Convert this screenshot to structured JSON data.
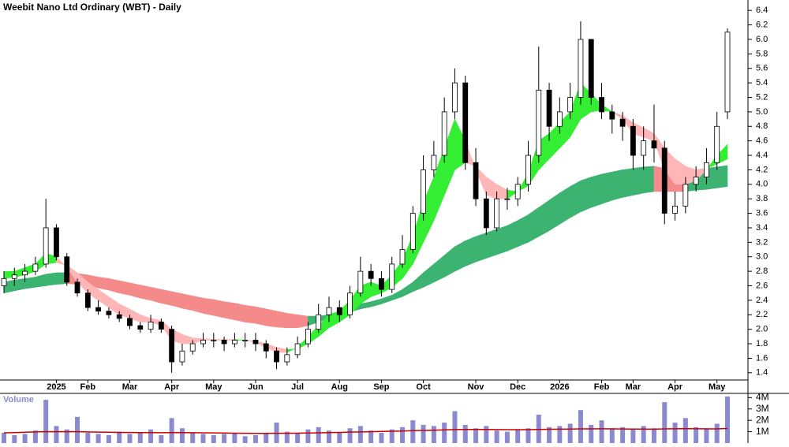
{
  "chart_data": {
    "type": "candlestick",
    "title": "Weebit Nano Ltd Ordinary (WBT) - Daily",
    "categories": [
      null,
      null,
      null,
      null,
      null,
      "2025",
      null,
      null,
      "Feb",
      null,
      null,
      null,
      "Mar",
      null,
      null,
      null,
      "Apr",
      null,
      null,
      null,
      "May",
      null,
      null,
      null,
      "Jun",
      null,
      null,
      null,
      "Jul",
      null,
      null,
      null,
      "Aug",
      null,
      null,
      null,
      "Sep",
      null,
      null,
      null,
      "Oct",
      null,
      null,
      null,
      null,
      "Nov",
      null,
      null,
      null,
      "Dec",
      null,
      null,
      null,
      "2026",
      null,
      null,
      null,
      "Feb",
      null,
      null,
      "Mar",
      null,
      null,
      null,
      "Apr",
      null,
      null,
      null,
      "May",
      null
    ],
    "open": [
      2.6,
      2.7,
      2.75,
      2.8,
      2.9,
      3.4,
      3.0,
      2.65,
      2.5,
      2.3,
      2.25,
      2.2,
      2.15,
      2.05,
      2.0,
      2.1,
      2.0,
      1.55,
      1.7,
      1.8,
      1.85,
      1.85,
      1.8,
      1.85,
      1.85,
      1.8,
      1.7,
      1.55,
      1.65,
      1.8,
      2.0,
      2.2,
      2.3,
      2.2,
      2.5,
      2.8,
      2.7,
      2.55,
      2.9,
      3.1,
      3.6,
      4.2,
      4.4,
      5.0,
      5.4,
      4.3,
      3.8,
      3.4,
      3.8,
      3.8,
      4.0,
      4.4,
      5.3,
      4.8,
      5.0,
      5.2,
      6.0,
      5.2,
      5.0,
      4.9,
      4.8,
      4.4,
      4.6,
      4.5,
      3.6,
      3.7,
      4.0,
      4.1,
      4.3,
      5.0
    ],
    "high": [
      2.8,
      2.85,
      2.9,
      3.0,
      3.8,
      3.45,
      3.05,
      2.7,
      2.55,
      2.4,
      2.3,
      2.25,
      2.2,
      2.1,
      2.2,
      2.15,
      2.05,
      1.8,
      1.85,
      1.95,
      1.95,
      1.9,
      1.95,
      1.95,
      1.95,
      1.85,
      1.75,
      1.75,
      1.9,
      2.1,
      2.35,
      2.45,
      2.4,
      2.6,
      3.0,
      2.9,
      2.8,
      3.0,
      3.3,
      3.7,
      4.4,
      4.6,
      5.2,
      5.6,
      5.5,
      4.5,
      3.9,
      3.9,
      3.95,
      4.1,
      4.6,
      5.9,
      5.4,
      5.2,
      5.4,
      6.25,
      6.0,
      5.4,
      5.1,
      5.0,
      4.9,
      4.8,
      5.1,
      4.6,
      3.9,
      4.1,
      4.25,
      4.5,
      5.0,
      6.15
    ],
    "low": [
      2.5,
      2.6,
      2.65,
      2.75,
      2.85,
      2.95,
      2.6,
      2.45,
      2.25,
      2.2,
      2.15,
      2.1,
      2.0,
      1.95,
      1.95,
      1.95,
      1.4,
      1.5,
      1.65,
      1.75,
      1.75,
      1.7,
      1.75,
      1.75,
      1.7,
      1.6,
      1.45,
      1.5,
      1.6,
      1.75,
      1.95,
      2.1,
      2.1,
      2.15,
      2.45,
      2.6,
      2.45,
      2.5,
      2.85,
      3.05,
      3.5,
      4.1,
      4.3,
      4.9,
      4.2,
      3.7,
      3.3,
      3.35,
      3.65,
      3.7,
      3.9,
      4.3,
      4.6,
      4.7,
      4.9,
      5.1,
      5.1,
      4.9,
      4.7,
      4.6,
      4.2,
      4.2,
      4.3,
      3.45,
      3.5,
      3.6,
      3.9,
      4.0,
      4.2,
      4.9
    ],
    "close": [
      2.7,
      2.75,
      2.8,
      2.9,
      3.4,
      3.0,
      2.65,
      2.5,
      2.3,
      2.25,
      2.2,
      2.15,
      2.05,
      2.0,
      2.1,
      2.0,
      1.55,
      1.7,
      1.8,
      1.85,
      1.85,
      1.8,
      1.85,
      1.85,
      1.8,
      1.7,
      1.55,
      1.65,
      1.8,
      2.0,
      2.2,
      2.3,
      2.2,
      2.5,
      2.8,
      2.7,
      2.55,
      2.9,
      3.1,
      3.6,
      4.2,
      4.4,
      5.0,
      5.4,
      4.3,
      3.8,
      3.4,
      3.8,
      3.8,
      4.0,
      4.4,
      5.3,
      4.8,
      5.0,
      5.2,
      6.0,
      5.2,
      5.0,
      4.9,
      4.8,
      4.4,
      4.6,
      4.5,
      3.6,
      3.7,
      4.0,
      4.1,
      4.3,
      4.8,
      6.1
    ],
    "up_color": "#ffffff",
    "down_color": "#000000",
    "bands": [
      {
        "color_by": "slope",
        "up_color": "#3cb371",
        "down_color": "#f48a8a",
        "fast": [
          2.65,
          2.68,
          2.7,
          2.72,
          2.76,
          2.78,
          2.78,
          2.77,
          2.75,
          2.72,
          2.7,
          2.67,
          2.64,
          2.61,
          2.58,
          2.55,
          2.52,
          2.49,
          2.46,
          2.43,
          2.41,
          2.38,
          2.36,
          2.33,
          2.31,
          2.28,
          2.25,
          2.22,
          2.2,
          2.18,
          2.18,
          2.2,
          2.25,
          2.3,
          2.35,
          2.38,
          2.42,
          2.47,
          2.55,
          2.65,
          2.78,
          2.9,
          3.02,
          3.14,
          3.22,
          3.28,
          3.33,
          3.38,
          3.43,
          3.5,
          3.58,
          3.68,
          3.78,
          3.88,
          3.97,
          4.05,
          4.1,
          4.14,
          4.17,
          4.2,
          4.22,
          4.24,
          4.25,
          4.22,
          4.2,
          4.19,
          4.2,
          4.22,
          4.24,
          4.26
        ],
        "slow": [
          2.5,
          2.53,
          2.56,
          2.58,
          2.6,
          2.62,
          2.63,
          2.62,
          2.6,
          2.57,
          2.54,
          2.5,
          2.47,
          2.43,
          2.4,
          2.36,
          2.33,
          2.29,
          2.26,
          2.22,
          2.19,
          2.16,
          2.13,
          2.1,
          2.08,
          2.05,
          2.03,
          2.02,
          2.02,
          2.05,
          2.1,
          2.15,
          2.2,
          2.24,
          2.28,
          2.31,
          2.35,
          2.4,
          2.45,
          2.52,
          2.58,
          2.65,
          2.72,
          2.8,
          2.87,
          2.93,
          2.98,
          3.03,
          3.08,
          3.14,
          3.2,
          3.28,
          3.36,
          3.45,
          3.54,
          3.62,
          3.68,
          3.73,
          3.78,
          3.82,
          3.85,
          3.88,
          3.9,
          3.9,
          3.9,
          3.9,
          3.92,
          3.93,
          3.95,
          3.97
        ]
      },
      {
        "color_by": "cross",
        "up_color": "#33ee33",
        "down_color": "#ffb6b6",
        "fast": [
          2.8,
          2.8,
          2.85,
          2.9,
          3.05,
          3.0,
          2.85,
          2.65,
          2.5,
          2.4,
          2.3,
          2.2,
          2.15,
          2.1,
          2.1,
          2.05,
          1.85,
          1.8,
          1.8,
          1.85,
          1.85,
          1.85,
          1.85,
          1.85,
          1.82,
          1.75,
          1.68,
          1.68,
          1.75,
          1.9,
          2.05,
          2.2,
          2.25,
          2.4,
          2.6,
          2.65,
          2.6,
          2.75,
          2.95,
          3.3,
          3.75,
          4.1,
          4.5,
          4.9,
          4.6,
          4.2,
          3.85,
          3.8,
          3.8,
          3.9,
          4.15,
          4.6,
          4.7,
          4.85,
          5.0,
          5.4,
          5.25,
          5.1,
          5.0,
          4.9,
          4.7,
          4.65,
          4.6,
          4.2,
          4.0,
          4.0,
          4.05,
          4.2,
          4.4,
          4.55
        ],
        "slow": [
          2.7,
          2.72,
          2.75,
          2.8,
          2.9,
          2.92,
          2.88,
          2.78,
          2.65,
          2.55,
          2.45,
          2.35,
          2.28,
          2.2,
          2.15,
          2.12,
          2.0,
          1.93,
          1.88,
          1.87,
          1.86,
          1.86,
          1.86,
          1.85,
          1.84,
          1.8,
          1.75,
          1.72,
          1.73,
          1.8,
          1.9,
          2.02,
          2.1,
          2.2,
          2.35,
          2.45,
          2.5,
          2.58,
          2.7,
          2.9,
          3.2,
          3.5,
          3.85,
          4.2,
          4.3,
          4.25,
          4.1,
          4.0,
          3.92,
          3.9,
          3.98,
          4.2,
          4.35,
          4.5,
          4.65,
          4.9,
          5.0,
          5.02,
          5.0,
          4.95,
          4.85,
          4.78,
          4.7,
          4.5,
          4.35,
          4.25,
          4.2,
          4.22,
          4.28,
          4.35
        ]
      }
    ],
    "ylim": [
      1.3,
      6.5
    ],
    "yticks": [
      1.4,
      1.6,
      1.8,
      {
        "value": 2,
        "label": "2.0"
      },
      2.2,
      2.4,
      2.6,
      2.8,
      {
        "value": 3,
        "label": "3.0"
      },
      3.2,
      3.4,
      3.6,
      3.8,
      {
        "value": 4,
        "label": "4.0"
      },
      4.2,
      4.4,
      4.6,
      4.8,
      {
        "value": 5,
        "label": "5.0"
      },
      5.2,
      5.4,
      5.6,
      5.8,
      {
        "value": 6,
        "label": "6.0"
      },
      6.2,
      6.4
    ],
    "volume": {
      "label": "Volume",
      "color": "#8a8ad0",
      "values": [
        900000,
        700000,
        800000,
        1100000,
        3800000,
        1500000,
        1200000,
        2300000,
        900000,
        800000,
        700000,
        1000000,
        800000,
        900000,
        1200000,
        700000,
        2200000,
        1300000,
        900000,
        800000,
        700000,
        800000,
        900000,
        600000,
        700000,
        800000,
        1800000,
        1000000,
        900000,
        1200000,
        1400000,
        1100000,
        900000,
        1300000,
        1500000,
        1100000,
        900000,
        1200000,
        1400000,
        2000000,
        1600000,
        1500000,
        1800000,
        2800000,
        1600000,
        1300000,
        1500000,
        1100000,
        1000000,
        1200000,
        1300000,
        2500000,
        1400000,
        1500000,
        1700000,
        2900000,
        1600000,
        2000000,
        1300000,
        1400000,
        1200000,
        1500000,
        1300000,
        3600000,
        1800000,
        2200000,
        1400000,
        1300000,
        1700000,
        4100000
      ],
      "average": {
        "color": "#cc0000",
        "values": [
          900000,
          920000,
          950000,
          980000,
          1000000,
          1000000,
          1000000,
          1000000,
          980000,
          960000,
          950000,
          940000,
          930000,
          920000,
          920000,
          910000,
          920000,
          920000,
          910000,
          900000,
          890000,
          880000,
          870000,
          860000,
          850000,
          850000,
          860000,
          860000,
          870000,
          880000,
          900000,
          920000,
          940000,
          960000,
          980000,
          1000000,
          1020000,
          1040000,
          1060000,
          1090000,
          1110000,
          1130000,
          1160000,
          1190000,
          1200000,
          1200000,
          1200000,
          1190000,
          1180000,
          1180000,
          1180000,
          1200000,
          1210000,
          1220000,
          1230000,
          1250000,
          1250000,
          1260000,
          1250000,
          1240000,
          1230000,
          1230000,
          1220000,
          1250000,
          1260000,
          1270000,
          1260000,
          1250000,
          1250000,
          1280000
        ]
      },
      "ylim": [
        0,
        4300000
      ],
      "yticks": [
        {
          "value": 1000000,
          "label": "1M"
        },
        {
          "value": 2000000,
          "label": "2M"
        },
        {
          "value": 3000000,
          "label": "3M"
        },
        {
          "value": 4000000,
          "label": "4M"
        }
      ]
    }
  }
}
